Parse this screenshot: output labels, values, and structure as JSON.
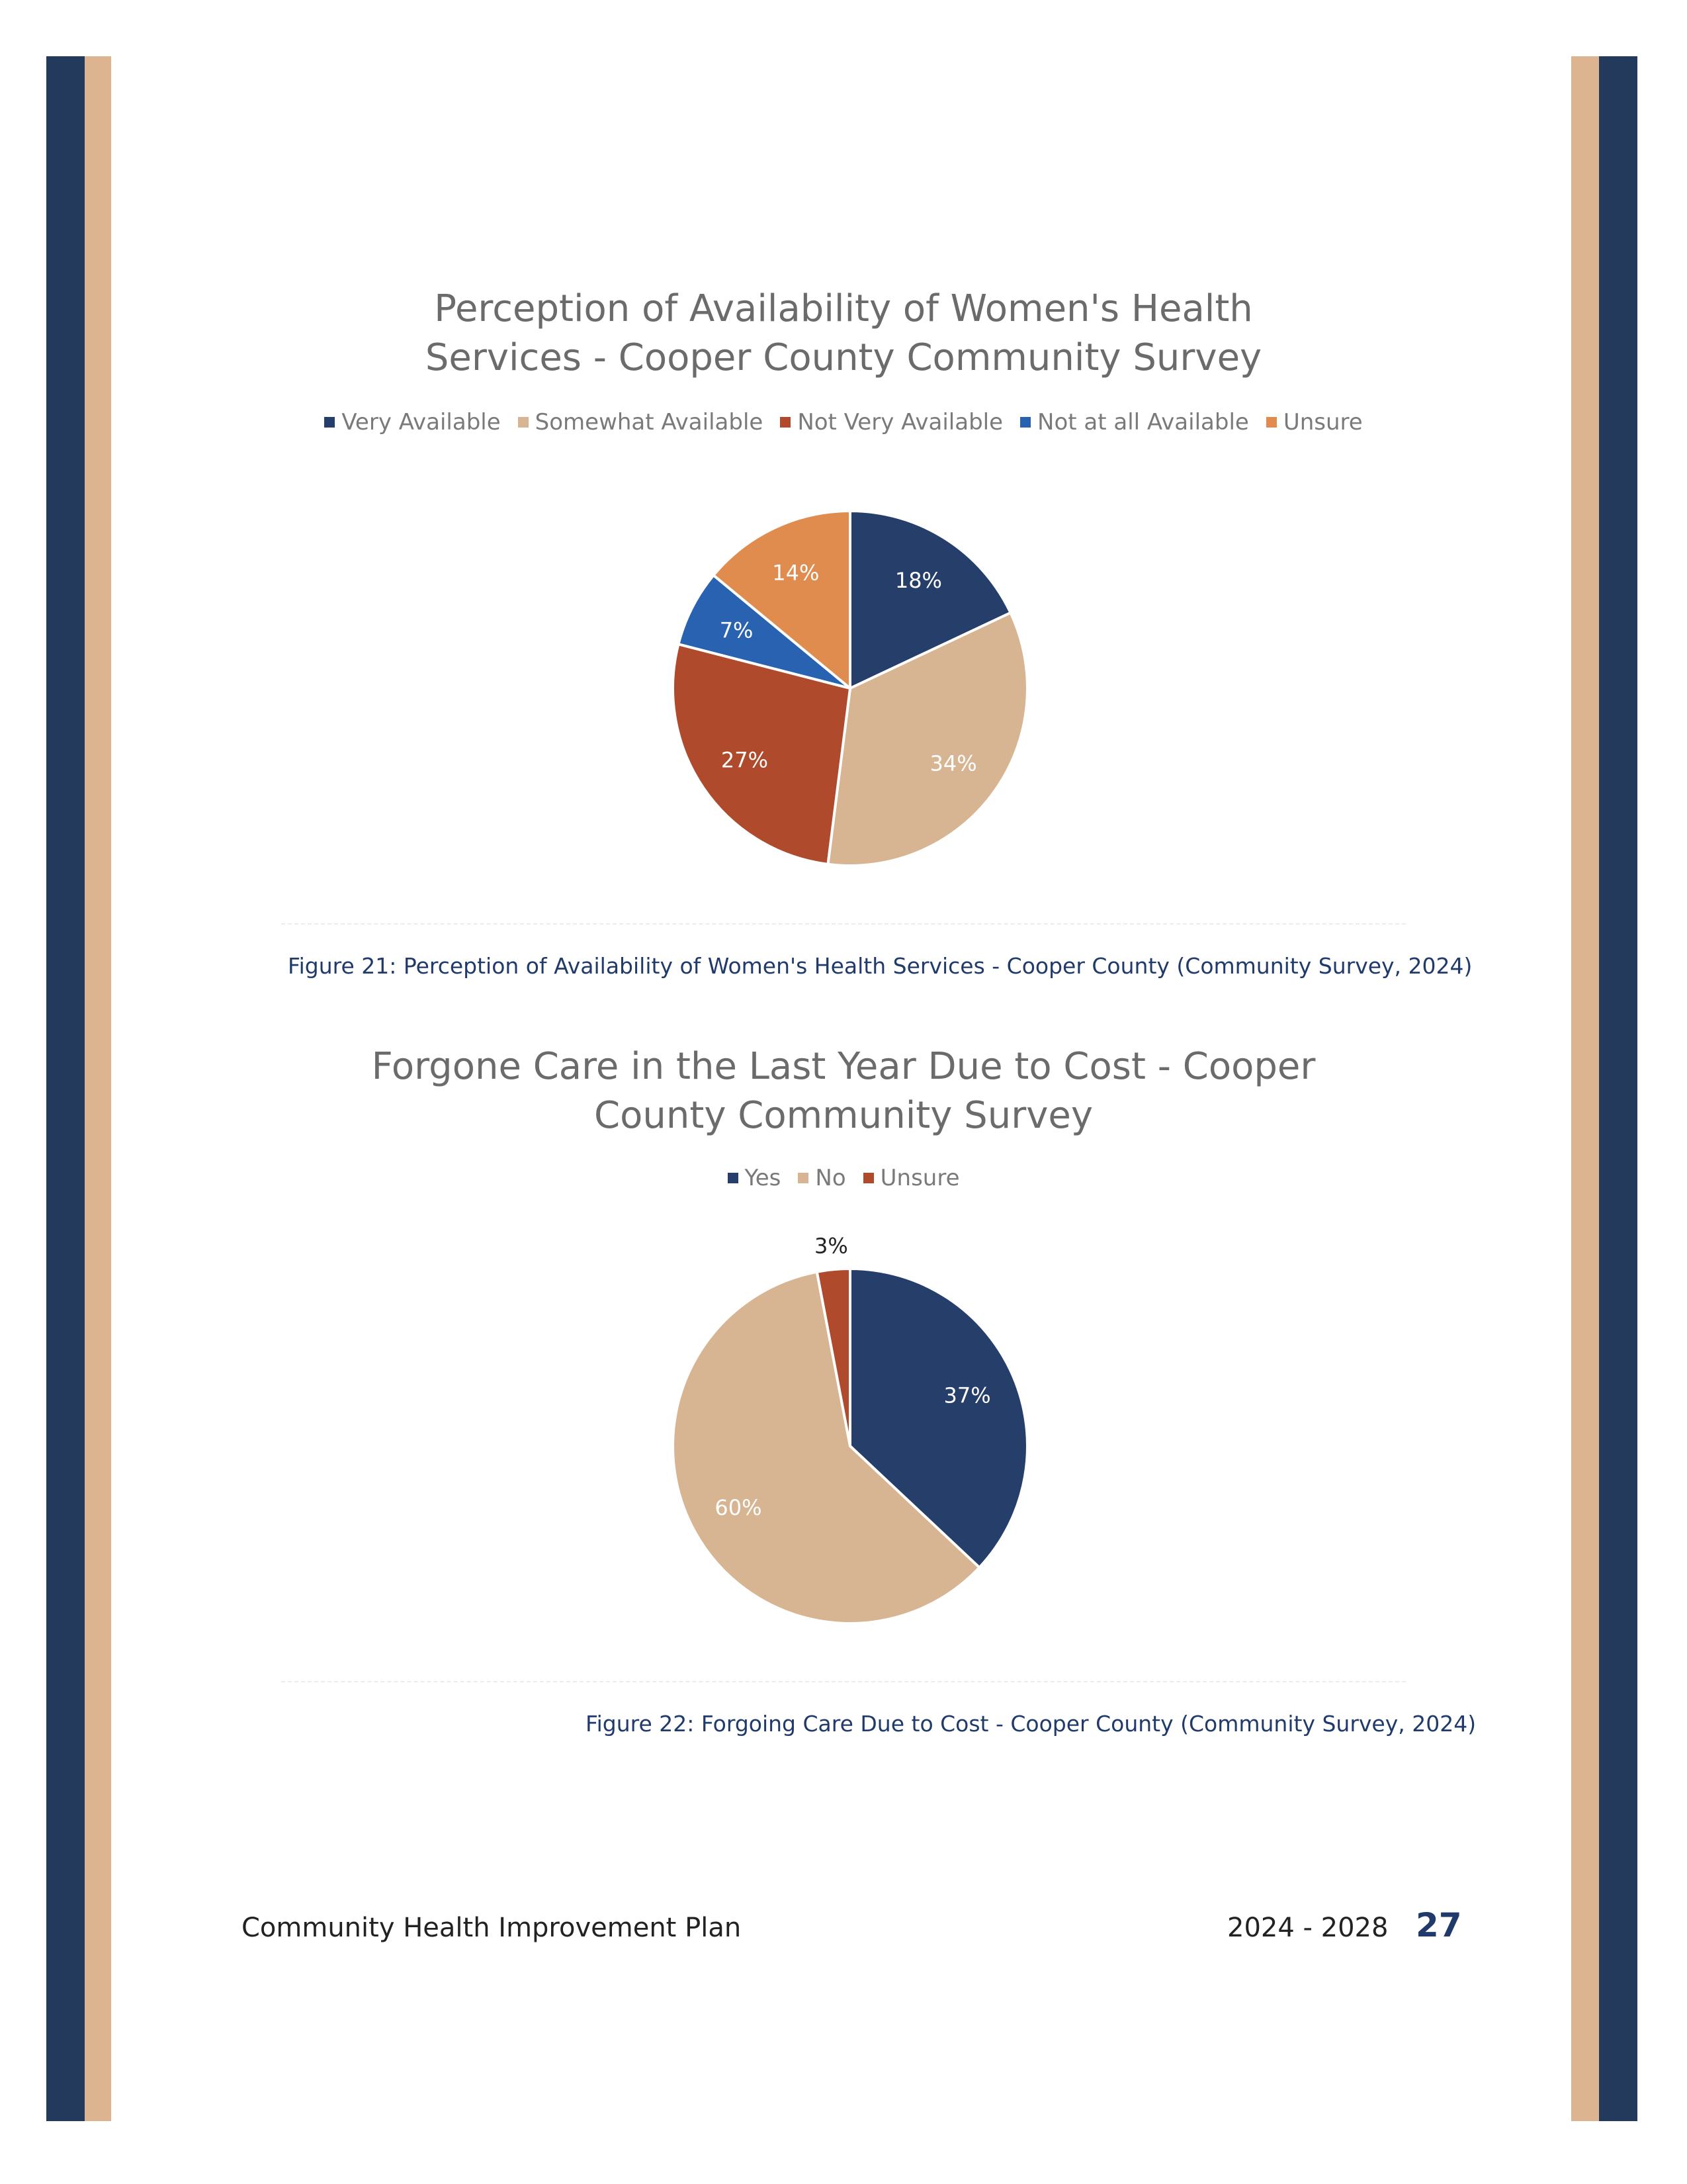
{
  "colors": {
    "navy": "#263f6a",
    "tan": "#d8b592",
    "rust": "#b04a2c",
    "blue": "#2a62b2",
    "orange": "#e08c4e",
    "border_tan": "#dcb490",
    "border_navy": "#233a5c",
    "caption": "#1f3a6b"
  },
  "chart_data": [
    {
      "type": "pie",
      "title_lines": [
        "Perception of Availability of Women's Health",
        "Services - Cooper County Community Survey"
      ],
      "categories": [
        "Very Available",
        "Somewhat Available",
        "Not Very Available",
        "Not at all Available",
        "Unsure"
      ],
      "values": [
        18,
        34,
        27,
        7,
        14
      ],
      "labels": [
        "18%",
        "34%",
        "27%",
        "7%",
        "14%"
      ],
      "colors": [
        "#263f6a",
        "#d8b592",
        "#b04a2c",
        "#2a62b2",
        "#e08c4e"
      ],
      "legend_position": "top"
    },
    {
      "type": "pie",
      "title_lines": [
        "Forgone Care in the Last Year Due to Cost - Cooper",
        "County Community Survey"
      ],
      "categories": [
        "Yes",
        "No",
        "Unsure"
      ],
      "values": [
        37,
        60,
        3
      ],
      "labels": [
        "37%",
        "60%",
        "3%"
      ],
      "colors": [
        "#263f6a",
        "#d8b592",
        "#b04a2c"
      ],
      "legend_position": "top"
    }
  ],
  "captions": {
    "figure21": "Figure 21: Perception of Availability of Women's Health Services - Cooper County (Community Survey, 2024)",
    "figure22": "Figure 22: Forgoing Care Due to Cost - Cooper County (Community Survey, 2024)"
  },
  "footer": {
    "title": "Community Health Improvement Plan",
    "years": "2024 - 2028",
    "page": "27"
  }
}
